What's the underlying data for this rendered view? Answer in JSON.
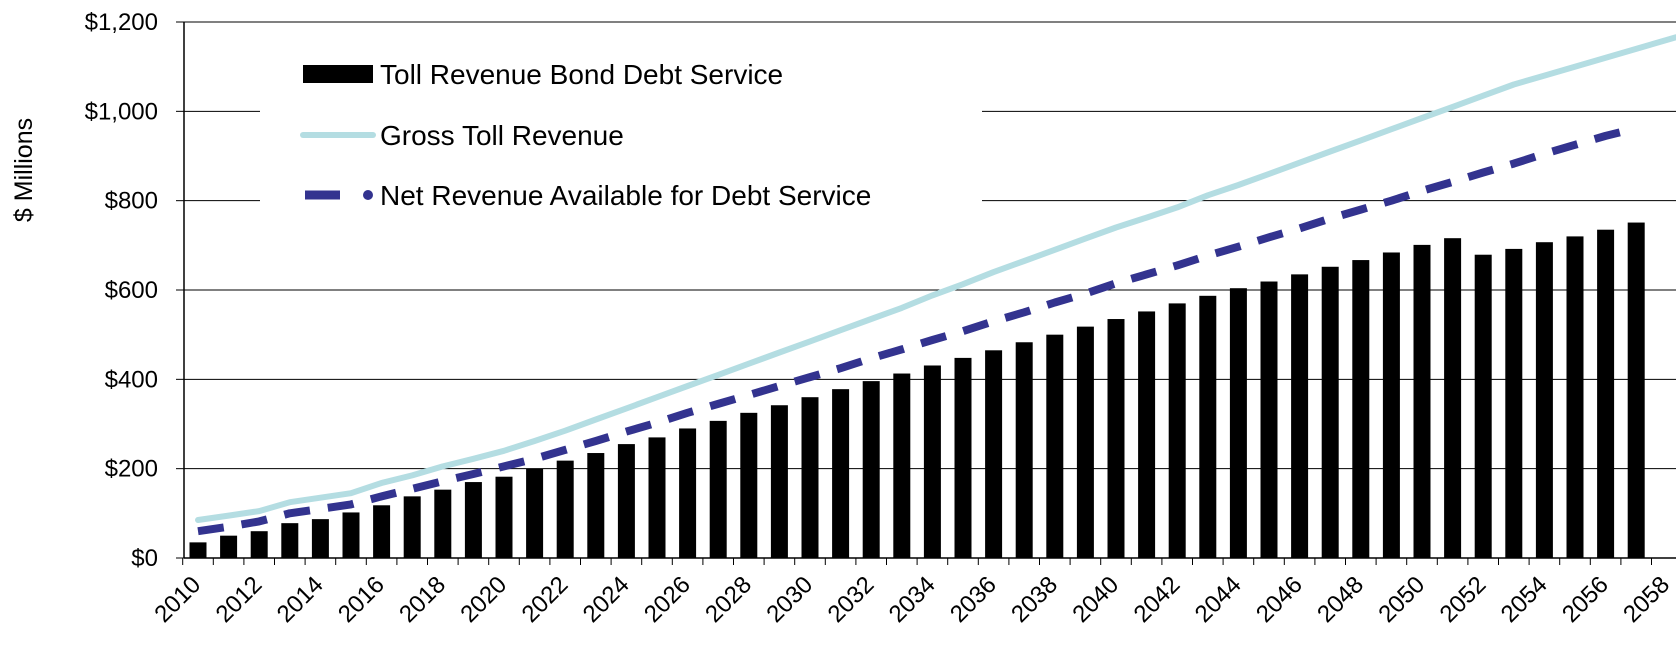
{
  "chart_data": {
    "type": "bar",
    "ylabel": "$ Millions",
    "xlabel": "",
    "title": "",
    "ylim": [
      0,
      1200
    ],
    "y_ticks": [
      0,
      200,
      400,
      600,
      800,
      1000,
      1200
    ],
    "y_tick_labels": [
      "$0",
      "$200",
      "$400",
      "$600",
      "$800",
      "$1,000",
      "$1,200"
    ],
    "x_tick_labels": [
      "2010",
      "2012",
      "2014",
      "2016",
      "2018",
      "2020",
      "2022",
      "2024",
      "2026",
      "2028",
      "2030",
      "2032",
      "2034",
      "2036",
      "2038",
      "2040",
      "2042",
      "2044",
      "2046",
      "2048",
      "2050",
      "2052",
      "2054",
      "2056",
      "2058"
    ],
    "grid": "horizontal",
    "legend_position": "top-left",
    "categories": [
      2010,
      2011,
      2012,
      2013,
      2014,
      2015,
      2016,
      2017,
      2018,
      2019,
      2020,
      2021,
      2022,
      2023,
      2024,
      2025,
      2026,
      2027,
      2028,
      2029,
      2030,
      2031,
      2032,
      2033,
      2034,
      2035,
      2036,
      2037,
      2038,
      2039,
      2040,
      2041,
      2042,
      2043,
      2044,
      2045,
      2046,
      2047,
      2048,
      2049,
      2050,
      2051,
      2052,
      2053,
      2054,
      2055,
      2056,
      2057,
      2058
    ],
    "series": [
      {
        "name": "Toll Revenue Bond Debt Service",
        "kind": "bar",
        "color": "#000000",
        "values": [
          35,
          50,
          60,
          78,
          87,
          102,
          118,
          138,
          153,
          170,
          182,
          200,
          218,
          235,
          255,
          270,
          290,
          307,
          325,
          342,
          360,
          378,
          396,
          413,
          431,
          448,
          465,
          483,
          500,
          518,
          535,
          552,
          570,
          587,
          604,
          619,
          635,
          652,
          667,
          684,
          701,
          716,
          679,
          692,
          707,
          720,
          735,
          751,
          null
        ]
      },
      {
        "name": "Gross Toll Revenue",
        "kind": "line",
        "color": "#b4dde2",
        "values": [
          85,
          95,
          105,
          125,
          135,
          145,
          168,
          185,
          205,
          222,
          240,
          262,
          285,
          310,
          335,
          360,
          385,
          410,
          435,
          460,
          485,
          510,
          535,
          560,
          588,
          613,
          640,
          665,
          690,
          715,
          740,
          762,
          785,
          812,
          835,
          860,
          885,
          910,
          935,
          960,
          985,
          1010,
          1035,
          1060,
          1080,
          null,
          null,
          null,
          null
        ],
        "extended_values": [
          85,
          95,
          105,
          125,
          135,
          145,
          168,
          185,
          205,
          222,
          240,
          262,
          285,
          310,
          335,
          360,
          385,
          410,
          435,
          460,
          485,
          510,
          535,
          560,
          588,
          613,
          640,
          665,
          690,
          715,
          740,
          762,
          785,
          812,
          835,
          860,
          885,
          910,
          935,
          960,
          985,
          1010,
          1035,
          1060,
          1080
        ]
      },
      {
        "name": "Net Revenue Available for Debt Service",
        "kind": "line-dashed",
        "color": "#33338f",
        "values": [
          60,
          70,
          82,
          100,
          110,
          120,
          138,
          155,
          172,
          188,
          205,
          222,
          242,
          262,
          283,
          303,
          325,
          345,
          365,
          385,
          405,
          425,
          447,
          467,
          488,
          508,
          530,
          550,
          572,
          592,
          615,
          635,
          655,
          677,
          697,
          718,
          738,
          760,
          780,
          800,
          822,
          842,
          863,
          883,
          905,
          925,
          945,
          962,
          null
        ]
      }
    ]
  },
  "legend": {
    "items": [
      {
        "label": "Toll Revenue Bond Debt Service",
        "color": "#000000",
        "kind": "bar"
      },
      {
        "label": "Gross Toll Revenue",
        "color": "#b4dde2",
        "kind": "line"
      },
      {
        "label": "Net Revenue Available for Debt Service",
        "color": "#33338f",
        "kind": "dash"
      }
    ]
  }
}
